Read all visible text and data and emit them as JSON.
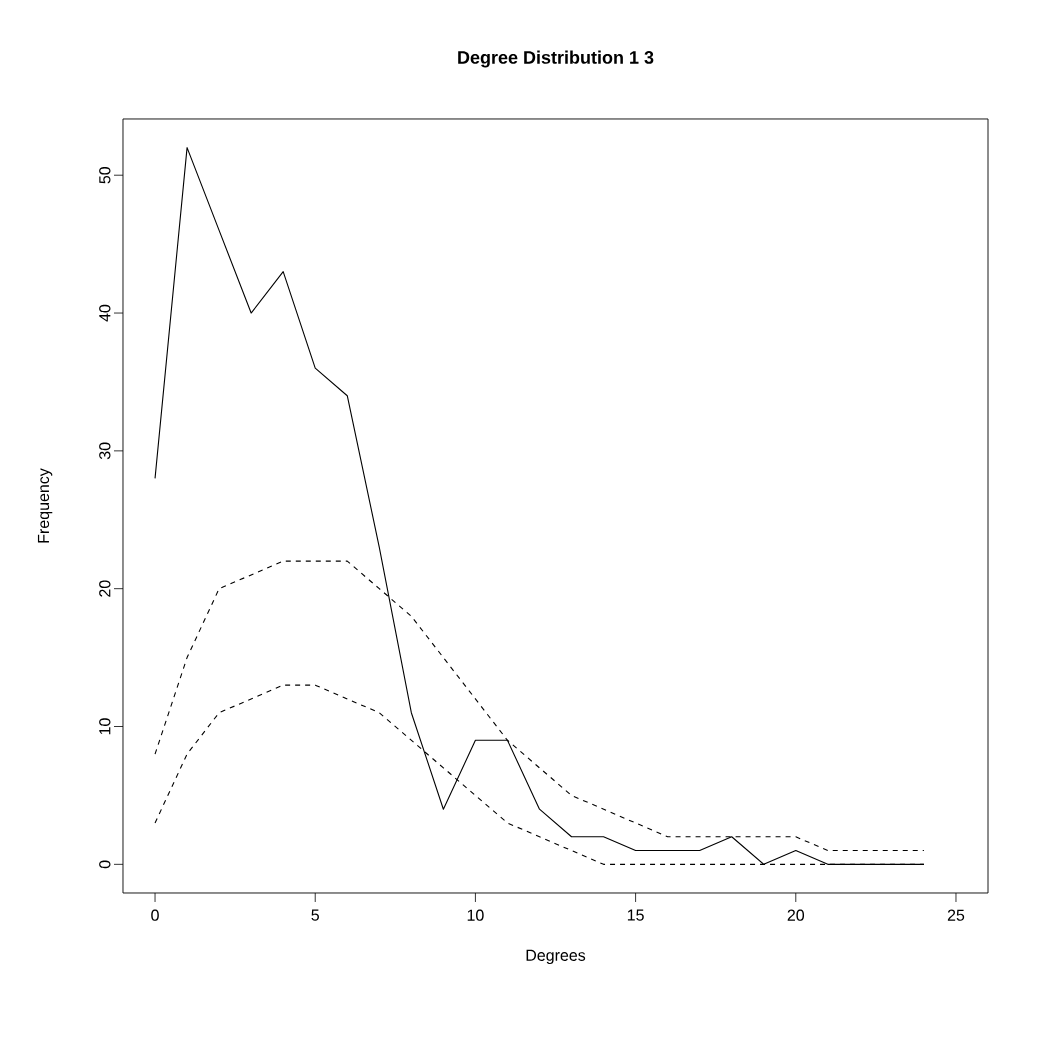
{
  "chart_data": {
    "type": "line",
    "title": "Degree Distribution 1 3",
    "xlabel": "Degrees",
    "ylabel": "Frequency",
    "x": [
      0,
      1,
      2,
      3,
      4,
      5,
      6,
      7,
      8,
      9,
      10,
      11,
      12,
      13,
      14,
      15,
      16,
      17,
      18,
      19,
      20,
      21,
      22,
      23,
      24
    ],
    "series": [
      {
        "color": "#000000",
        "line_style": "solid",
        "values": [
          28,
          52,
          46,
          40,
          43,
          36,
          34,
          23,
          11,
          4,
          9,
          9,
          4,
          2,
          2,
          1,
          1,
          1,
          2,
          0,
          1,
          0,
          0,
          0,
          0
        ]
      },
      {
        "color": "#000000",
        "line_style": "dashed",
        "values": [
          8,
          15,
          20,
          21,
          22,
          22,
          22,
          20,
          18,
          15,
          12,
          9,
          7,
          5,
          4,
          3,
          2,
          2,
          2,
          2,
          2,
          1,
          1,
          1,
          1
        ]
      },
      {
        "color": "#000000",
        "line_style": "dashed",
        "values": [
          3,
          8,
          11,
          12,
          13,
          13,
          12,
          11,
          9,
          7,
          5,
          3,
          2,
          1,
          0,
          0,
          0,
          0,
          0,
          0,
          0,
          0,
          0,
          0,
          0
        ]
      }
    ],
    "xlim": [
      -1,
      26
    ],
    "ylim": [
      -2.08,
      54.08
    ],
    "xticks": [
      0,
      5,
      10,
      15,
      20,
      25
    ],
    "yticks": [
      0,
      10,
      20,
      30,
      40,
      50
    ],
    "marker": "none"
  }
}
